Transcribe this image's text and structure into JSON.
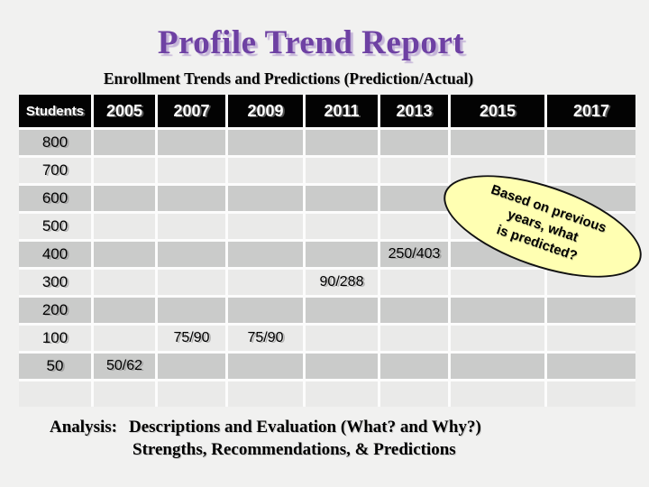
{
  "slide": {
    "title": "Profile Trend Report",
    "subtitle": "Enrollment Trends and Predictions (Prediction/Actual)",
    "colors": {
      "background": "#f1f1f0",
      "title_purple": "#6e41a3",
      "header_bg": "#030303",
      "row_dark": "#cacbca",
      "row_light": "#eaeae9",
      "callout_fill": "#ffffb2",
      "callout_border": "#111111"
    }
  },
  "table": {
    "columns": [
      "Students",
      "2005",
      "2007",
      "2009",
      "2011",
      "2013",
      "2015",
      "2017"
    ],
    "rows": [
      {
        "label": "800",
        "cells": [
          "",
          "",
          "",
          "",
          "",
          "",
          ""
        ]
      },
      {
        "label": "700",
        "cells": [
          "",
          "",
          "",
          "",
          "",
          "",
          ""
        ]
      },
      {
        "label": "600",
        "cells": [
          "",
          "",
          "",
          "",
          "",
          "",
          ""
        ]
      },
      {
        "label": "500",
        "cells": [
          "",
          "",
          "",
          "",
          "",
          "",
          ""
        ]
      },
      {
        "label": "400",
        "cells": [
          "",
          "",
          "",
          "",
          "250/403",
          "",
          ""
        ]
      },
      {
        "label": "300",
        "cells": [
          "",
          "",
          "",
          "90/288",
          "",
          "",
          ""
        ]
      },
      {
        "label": "200",
        "cells": [
          "",
          "",
          "",
          "",
          "",
          "",
          ""
        ]
      },
      {
        "label": "100",
        "cells": [
          "",
          "75/90",
          "75/90",
          "",
          "",
          "",
          ""
        ]
      },
      {
        "label": "50",
        "cells": [
          "50/62",
          "",
          "",
          "",
          "",
          "",
          ""
        ]
      },
      {
        "label": "",
        "cells": [
          "",
          "",
          "",
          "",
          "",
          "",
          ""
        ]
      }
    ]
  },
  "callout": {
    "line1": "Based on previous",
    "line2": "years, what",
    "line3": "is predicted?"
  },
  "analysis": {
    "label": "Analysis:",
    "line1": "Descriptions and Evaluation (What? and Why?)",
    "line2": "Strengths, Recommendations, & Predictions"
  }
}
